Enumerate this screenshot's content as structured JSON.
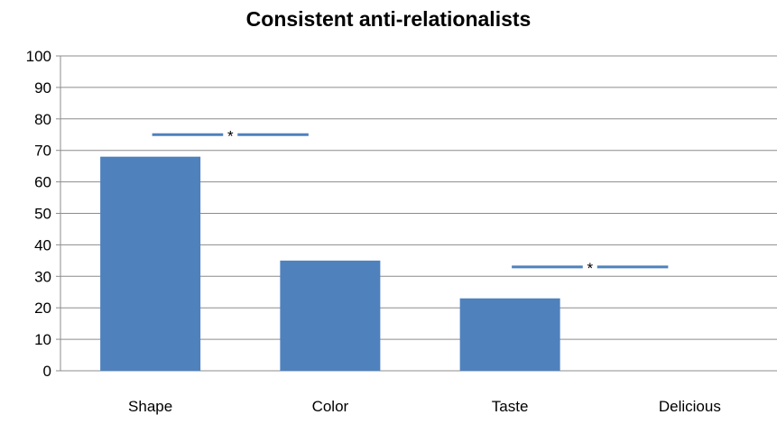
{
  "chart_data": {
    "type": "bar",
    "title": "Consistent anti-relationalists",
    "categories": [
      "Shape",
      "Color",
      "Taste",
      "Delicious"
    ],
    "values": [
      68,
      35,
      23,
      0
    ],
    "ylim": [
      0,
      100
    ],
    "yticks": [
      0,
      10,
      20,
      30,
      40,
      50,
      60,
      70,
      80,
      90,
      100
    ],
    "grid": true,
    "legend": "none",
    "bar_color": "#4f81bd",
    "significance": [
      {
        "from": 0,
        "to": 1,
        "y": 75,
        "label": "*"
      },
      {
        "from": 2,
        "to": 3,
        "y": 33,
        "label": "*"
      }
    ]
  }
}
